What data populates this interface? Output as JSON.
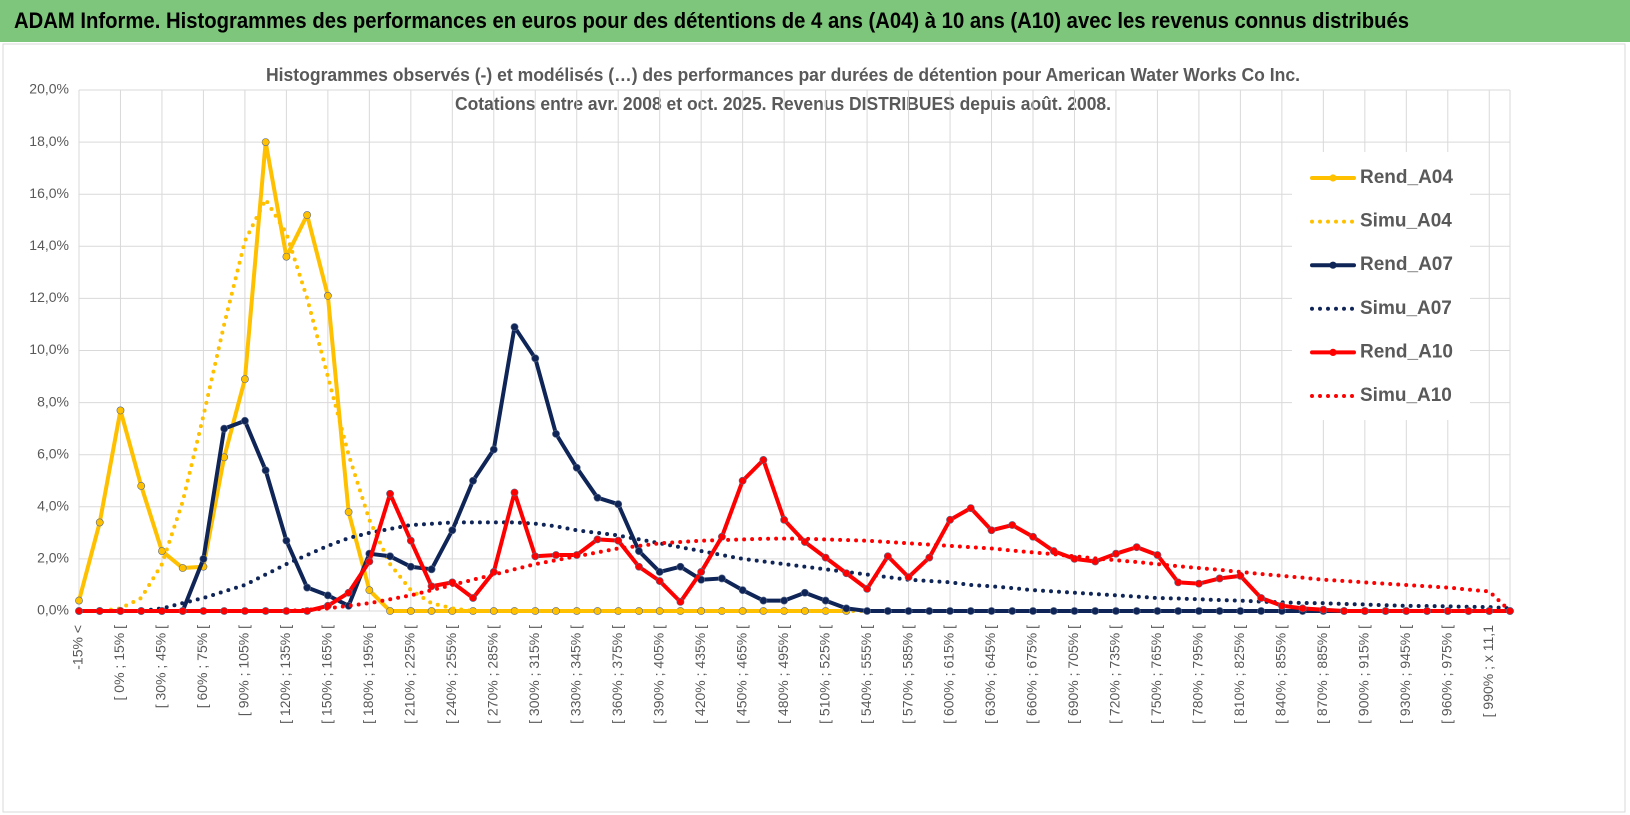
{
  "chart_data": {
    "type": "line",
    "title": "ADAM Informe. Histogrammes des performances en euros pour des détentions de 4 ans (A04) à 10 ans (A10) avec les revenus connus distribués",
    "subtitle": [
      "Histogrammes observés (-) et modélisés (…) des performances par durées de détention pour American Water Works Co Inc.",
      "Cotations entre avr. 2008 et oct. 2025. Revenus DISTRIBUES depuis août. 2008."
    ],
    "categories": [
      "-15% <",
      null,
      "[ 0% ; 15% [",
      null,
      "[ 30% ; 45% [",
      null,
      "[ 60% ; 75% [",
      null,
      "[ 90% ; 105% [",
      null,
      "[ 120% ; 135% [",
      null,
      "[ 150% ; 165% [",
      null,
      "[ 180% ; 195% [",
      null,
      "[ 210% ; 225% [",
      null,
      "[ 240% ; 255% [",
      null,
      "[ 270% ; 285% [",
      null,
      "[ 300% ; 315% [",
      null,
      "[ 330% ; 345% [",
      null,
      "[ 360% ; 375% [",
      null,
      "[ 390% ; 405% [",
      null,
      "[ 420% ; 435% [",
      null,
      "[ 450% ; 465% [",
      null,
      "[ 480% ; 495% [",
      null,
      "[ 510% ; 525% [",
      null,
      "[ 540% ; 555% [",
      null,
      "[ 570% ; 585% [",
      null,
      "[ 600% ; 615% [",
      null,
      "[ 630% ; 645% [",
      null,
      "[ 660% ; 675% [",
      null,
      "[ 690% ; 705% [",
      null,
      "[ 720% ; 735% [",
      null,
      "[ 750% ; 765% [",
      null,
      "[ 780% ; 795% [",
      null,
      "[ 810% ; 825% [",
      null,
      "[ 840% ; 855% [",
      null,
      "[ 870% ; 885% [",
      null,
      "[ 900% ; 915% [",
      null,
      "[ 930% ; 945% [",
      null,
      "[ 960% ; 975% [",
      null,
      "[ 990% ; x 11,1",
      null
    ],
    "ylim": [
      0,
      20
    ],
    "yticks": [
      {
        "value": 0,
        "label": "0,0%"
      },
      {
        "value": 2,
        "label": "2,0%"
      },
      {
        "value": 4,
        "label": "4,0%"
      },
      {
        "value": 6,
        "label": "6,0%"
      },
      {
        "value": 8,
        "label": "8,0%"
      },
      {
        "value": 10,
        "label": "10,0%"
      },
      {
        "value": 12,
        "label": "12,0%"
      },
      {
        "value": 14,
        "label": "14,0%"
      },
      {
        "value": 16,
        "label": "16,0%"
      },
      {
        "value": 18,
        "label": "18,0%"
      },
      {
        "value": 20,
        "label": "20,0%"
      }
    ],
    "grid": true,
    "legend": "right",
    "series": [
      {
        "name": "Rend_A04",
        "color": "#FFC000",
        "style": "solid",
        "markers": true,
        "values": [
          0.4,
          3.4,
          7.7,
          4.8,
          2.3,
          1.65,
          1.7,
          5.9,
          8.9,
          18.0,
          13.6,
          15.2,
          12.1,
          3.8,
          0.8,
          0,
          0,
          0,
          0,
          0,
          0,
          0,
          0,
          0,
          0,
          0,
          0,
          0,
          0,
          0,
          0,
          0,
          0,
          0,
          0,
          0,
          0,
          0,
          null,
          null,
          null,
          null,
          null,
          null,
          null,
          null,
          null,
          null,
          null,
          null,
          null,
          null,
          null,
          null,
          null,
          null,
          null,
          null,
          null,
          null,
          null,
          null,
          null,
          null,
          null,
          null,
          null,
          null,
          null,
          null
        ]
      },
      {
        "name": "Simu_A04",
        "color": "#FFC000",
        "style": "dotted",
        "markers": false,
        "values": [
          0,
          0,
          0.1,
          0.5,
          1.8,
          4.2,
          7.5,
          11.0,
          14.2,
          15.8,
          14.5,
          12.0,
          9.0,
          6.0,
          3.5,
          1.8,
          0.8,
          0.3,
          0.1,
          0,
          0,
          0,
          0,
          0,
          0,
          0,
          0,
          0,
          0,
          0,
          0,
          0,
          0,
          0,
          0,
          0,
          0,
          0,
          0,
          0,
          0,
          0,
          0,
          0,
          0,
          0,
          0,
          0,
          0,
          0,
          0,
          0,
          0,
          0,
          0,
          0,
          0,
          0,
          0,
          0,
          0,
          0,
          0,
          0,
          0,
          0,
          0,
          0,
          0,
          0
        ]
      },
      {
        "name": "Rend_A07",
        "color": "#0F2557",
        "style": "solid",
        "markers": true,
        "values": [
          0,
          0,
          0,
          0,
          0,
          0,
          2.0,
          7.0,
          7.3,
          5.4,
          2.7,
          0.9,
          0.6,
          0.2,
          2.2,
          2.1,
          1.7,
          1.6,
          3.1,
          5.0,
          6.2,
          10.9,
          9.7,
          6.8,
          5.5,
          4.35,
          4.1,
          2.3,
          1.5,
          1.7,
          1.2,
          1.25,
          0.8,
          0.4,
          0.4,
          0.7,
          0.4,
          0.1,
          0,
          0,
          0,
          0,
          0,
          0,
          0,
          0,
          0,
          0,
          0,
          0,
          0,
          0,
          0,
          0,
          0,
          0,
          0,
          0,
          0,
          0,
          0,
          0,
          0,
          0,
          0,
          0,
          0,
          0,
          0,
          0
        ]
      },
      {
        "name": "Simu_A07",
        "color": "#0F2557",
        "style": "dotted",
        "markers": false,
        "values": [
          0,
          0,
          0,
          0,
          0.1,
          0.3,
          0.5,
          0.75,
          1.0,
          1.4,
          1.8,
          2.15,
          2.5,
          2.8,
          3.0,
          3.15,
          3.3,
          3.35,
          3.4,
          3.4,
          3.4,
          3.4,
          3.35,
          3.25,
          3.1,
          3.0,
          2.9,
          2.75,
          2.6,
          2.45,
          2.3,
          2.15,
          2.0,
          1.9,
          1.8,
          1.7,
          1.6,
          1.5,
          1.4,
          1.3,
          1.2,
          1.15,
          1.1,
          1.0,
          0.95,
          0.88,
          0.8,
          0.75,
          0.7,
          0.65,
          0.6,
          0.55,
          0.5,
          0.48,
          0.45,
          0.42,
          0.4,
          0.36,
          0.33,
          0.31,
          0.3,
          0.27,
          0.25,
          0.22,
          0.2,
          0.19,
          0.18,
          0.16,
          0.15,
          0.1
        ]
      },
      {
        "name": "Rend_A10",
        "color": "#FF0000",
        "style": "solid",
        "markers": true,
        "values": [
          0,
          0,
          0,
          0,
          0,
          0,
          0,
          0,
          0,
          0,
          0,
          0,
          0.2,
          0.7,
          1.9,
          4.5,
          2.7,
          0.95,
          1.1,
          0.5,
          1.5,
          4.55,
          2.1,
          2.15,
          2.15,
          2.75,
          2.7,
          1.7,
          1.15,
          0.35,
          1.5,
          2.85,
          5.0,
          5.8,
          3.5,
          2.65,
          2.05,
          1.45,
          0.85,
          2.1,
          1.3,
          2.05,
          3.5,
          3.95,
          3.1,
          3.3,
          2.85,
          2.3,
          2.0,
          1.9,
          2.2,
          2.45,
          2.15,
          1.1,
          1.05,
          1.25,
          1.35,
          0.5,
          0.2,
          0.1,
          0.05,
          0,
          0,
          0,
          0,
          0,
          0,
          0,
          0,
          0
        ]
      },
      {
        "name": "Simu_A10",
        "color": "#FF0000",
        "style": "dotted",
        "markers": false,
        "values": [
          0,
          0,
          0,
          0,
          0,
          0,
          0,
          0,
          0,
          0,
          0,
          0.05,
          0.1,
          0.2,
          0.3,
          0.45,
          0.6,
          0.8,
          1.0,
          1.2,
          1.4,
          1.6,
          1.8,
          1.95,
          2.1,
          2.25,
          2.4,
          2.5,
          2.6,
          2.65,
          2.7,
          2.72,
          2.75,
          2.77,
          2.78,
          2.77,
          2.75,
          2.72,
          2.7,
          2.65,
          2.6,
          2.55,
          2.5,
          2.45,
          2.4,
          2.32,
          2.25,
          2.18,
          2.1,
          2.02,
          1.95,
          1.88,
          1.8,
          1.72,
          1.65,
          1.58,
          1.5,
          1.42,
          1.35,
          1.28,
          1.2,
          1.15,
          1.1,
          1.05,
          1.0,
          0.95,
          0.9,
          0.82,
          0.75,
          0
        ]
      }
    ]
  }
}
